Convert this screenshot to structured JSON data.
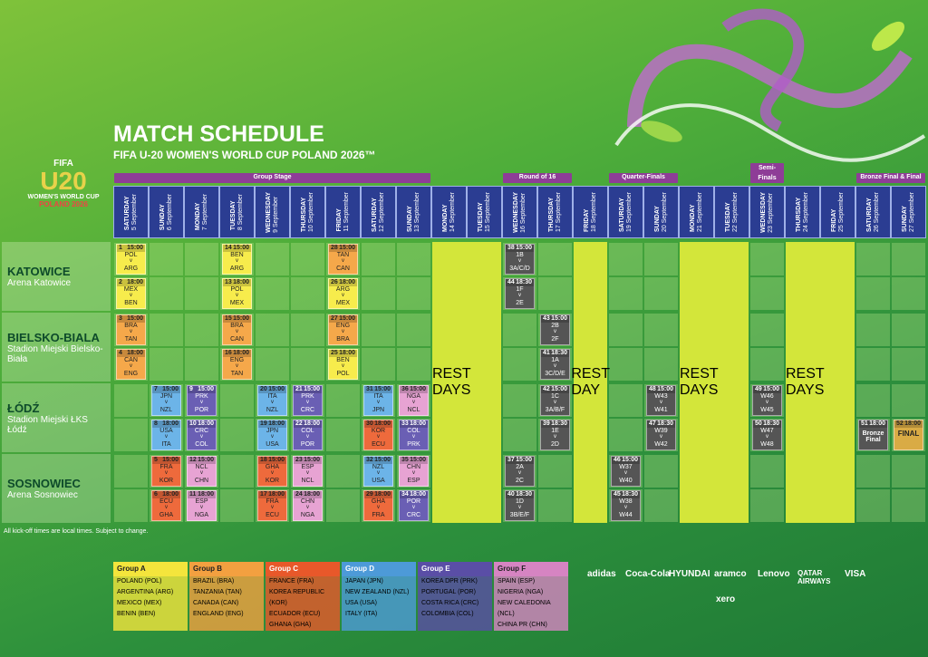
{
  "header": {
    "title": "MATCH SCHEDULE",
    "subtitle": "FIFA U-20 WOMEN'S WORLD CUP POLAND 2026™"
  },
  "logo": {
    "fifa": "FIFA",
    "u20": "U20",
    "line1": "WOMEN'S WORLD CUP",
    "line2": "POLAND 2026"
  },
  "stages": [
    "Group Stage",
    "Round of 16",
    "Quarter-Finals",
    "Semi-Finals",
    "Bronze Final & Final"
  ],
  "days": [
    {
      "weekday": "SATURDAY",
      "date": "5 September"
    },
    {
      "weekday": "SUNDAY",
      "date": "6 September"
    },
    {
      "weekday": "MONDAY",
      "date": "7 September"
    },
    {
      "weekday": "TUESDAY",
      "date": "8 September"
    },
    {
      "weekday": "WEDNESDAY",
      "date": "9 September"
    },
    {
      "weekday": "THURSDAY",
      "date": "10 September"
    },
    {
      "weekday": "FRIDAY",
      "date": "11 September"
    },
    {
      "weekday": "SATURDAY",
      "date": "12 September"
    },
    {
      "weekday": "SUNDAY",
      "date": "13 September"
    },
    {
      "weekday": "MONDAY",
      "date": "14 September"
    },
    {
      "weekday": "TUESDAY",
      "date": "15 September"
    },
    {
      "weekday": "WEDNESDAY",
      "date": "16 September"
    },
    {
      "weekday": "THURSDAY",
      "date": "17 September"
    },
    {
      "weekday": "FRIDAY",
      "date": "18 September"
    },
    {
      "weekday": "SATURDAY",
      "date": "19 September"
    },
    {
      "weekday": "SUNDAY",
      "date": "20 September"
    },
    {
      "weekday": "MONDAY",
      "date": "21 September"
    },
    {
      "weekday": "TUESDAY",
      "date": "22 September"
    },
    {
      "weekday": "WEDNESDAY",
      "date": "23 September"
    },
    {
      "weekday": "THURSDAY",
      "date": "24 September"
    },
    {
      "weekday": "FRIDAY",
      "date": "25 September"
    },
    {
      "weekday": "SATURDAY",
      "date": "26 September"
    },
    {
      "weekday": "SUNDAY",
      "date": "27 September"
    }
  ],
  "versus": "v",
  "venues": [
    {
      "city": "KATOWICE",
      "stadium": "Arena Katowice",
      "slots": [
        [
          {
            "number": "1",
            "time": "15:00",
            "teams": [
              "POL",
              "ARG"
            ],
            "color": "#f7ec4c"
          },
          {
            "number": "14",
            "time": "15:00",
            "teams": [
              "BEN",
              "ARG"
            ],
            "color": "#f7ec4c"
          },
          {
            "number": "28",
            "time": "15:00",
            "teams": [
              "TAN",
              "CAN"
            ],
            "color": "#f5a84a"
          },
          {
            "number": "38",
            "time": "15:00",
            "teams": [
              "1B",
              "3A/C/D"
            ],
            "color": "#555555"
          }
        ],
        [
          {
            "number": "2",
            "time": "18:00",
            "teams": [
              "MEX",
              "BEN"
            ],
            "color": "#f7ec4c"
          },
          {
            "number": "13",
            "time": "18:00",
            "teams": [
              "POL",
              "MEX"
            ],
            "color": "#f7ec4c"
          },
          {
            "number": "26",
            "time": "18:00",
            "teams": [
              "ARG",
              "MEX"
            ],
            "color": "#f7ec4c"
          },
          {
            "number": "44",
            "time": "18:30",
            "teams": [
              "1F",
              "2E"
            ],
            "color": "#555555"
          }
        ]
      ]
    },
    {
      "city": "BIELSKO-BIALA",
      "stadium": "Stadion Miejski Bielsko-Biała",
      "slots": [
        [
          {
            "number": "3",
            "time": "15:00",
            "teams": [
              "BRA",
              "TAN"
            ],
            "color": "#f5a84a"
          },
          {
            "number": "15",
            "time": "15:00",
            "teams": [
              "BRA",
              "CAN"
            ],
            "color": "#f5a84a"
          },
          {
            "number": "27",
            "time": "15:00",
            "teams": [
              "ENG",
              "BRA"
            ],
            "color": "#f5a84a"
          },
          {
            "number": "43",
            "time": "15:00",
            "teams": [
              "2B",
              "2F"
            ],
            "color": "#555555"
          }
        ],
        [
          {
            "number": "4",
            "time": "18:00",
            "teams": [
              "CAN",
              "ENG"
            ],
            "color": "#f5a84a"
          },
          {
            "number": "16",
            "time": "18:00",
            "teams": [
              "ENG",
              "TAN"
            ],
            "color": "#f5a84a"
          },
          {
            "number": "25",
            "time": "18:00",
            "teams": [
              "BEN",
              "POL"
            ],
            "color": "#f7ec4c"
          },
          {
            "number": "41",
            "time": "18:30",
            "teams": [
              "1A",
              "3C/D/E"
            ],
            "color": "#555555"
          }
        ]
      ]
    },
    {
      "city": "ŁÓDŹ",
      "stadium": "Stadion Miejski ŁKS Łódź",
      "slots": [
        [
          {
            "number": "7",
            "time": "15:00",
            "teams": [
              "JPN",
              "NZL"
            ],
            "color": "#6cb4e8"
          },
          {
            "number": "9",
            "time": "15:00",
            "teams": [
              "PRK",
              "POR"
            ],
            "color": "#6a5fb4"
          },
          {
            "number": "20",
            "time": "15:00",
            "teams": [
              "ITA",
              "NZL"
            ],
            "color": "#6cb4e8"
          },
          {
            "number": "21",
            "time": "15:00",
            "teams": [
              "PRK",
              "CRC"
            ],
            "color": "#6a5fb4"
          },
          {
            "number": "31",
            "time": "15:00",
            "teams": [
              "ITA",
              "JPN"
            ],
            "color": "#6cb4e8"
          },
          {
            "number": "36",
            "time": "15:00",
            "teams": [
              "NGA",
              "NCL"
            ],
            "color": "#e7a3d3"
          },
          {
            "number": "42",
            "time": "15:00",
            "teams": [
              "1C",
              "3A/B/F"
            ],
            "color": "#555555"
          },
          {
            "number": "48",
            "time": "15:00",
            "teams": [
              "W43",
              "W41"
            ],
            "color": "#555555"
          },
          {
            "number": "49",
            "time": "15:00",
            "teams": [
              "W46",
              "W45"
            ],
            "color": "#555555"
          }
        ],
        [
          {
            "number": "8",
            "time": "18:00",
            "teams": [
              "USA",
              "ITA"
            ],
            "color": "#6cb4e8"
          },
          {
            "number": "10",
            "time": "18:00",
            "teams": [
              "CRC",
              "COL"
            ],
            "color": "#6a5fb4"
          },
          {
            "number": "19",
            "time": "18:00",
            "teams": [
              "JPN",
              "USA"
            ],
            "color": "#6cb4e8"
          },
          {
            "number": "22",
            "time": "18:00",
            "teams": [
              "COL",
              "POR"
            ],
            "color": "#6a5fb4"
          },
          {
            "number": "30",
            "time": "18:00",
            "teams": [
              "KOR",
              "ECU"
            ],
            "color": "#ee6a3c"
          },
          {
            "number": "33",
            "time": "18:00",
            "teams": [
              "COL",
              "PRK"
            ],
            "color": "#6a5fb4"
          },
          {
            "number": "39",
            "time": "18:30",
            "teams": [
              "1E",
              "2D"
            ],
            "color": "#555555"
          },
          {
            "number": "47",
            "time": "18:30",
            "teams": [
              "W39",
              "W42"
            ],
            "color": "#555555"
          },
          {
            "number": "50",
            "time": "18:30",
            "teams": [
              "W47",
              "W48"
            ],
            "color": "#555555"
          },
          {
            "number": "51",
            "time": "18:00",
            "label": "Bronze Final",
            "color": "#555555"
          },
          {
            "number": "52",
            "time": "18:00",
            "label": "FINAL",
            "color": "#d9ab45"
          }
        ]
      ]
    },
    {
      "city": "SOSNOWIEC",
      "stadium": "Arena Sosnowiec",
      "slots": [
        [
          {
            "number": "5",
            "time": "15:00",
            "teams": [
              "FRA",
              "KOR"
            ],
            "color": "#ee6a3c"
          },
          {
            "number": "12",
            "time": "15:00",
            "teams": [
              "NCL",
              "CHN"
            ],
            "color": "#e7a3d3"
          },
          {
            "number": "18",
            "time": "15:00",
            "teams": [
              "GHA",
              "KOR"
            ],
            "color": "#ee6a3c"
          },
          {
            "number": "23",
            "time": "15:00",
            "teams": [
              "ESP",
              "NCL"
            ],
            "color": "#e7a3d3"
          },
          {
            "number": "32",
            "time": "15:00",
            "teams": [
              "NZL",
              "USA"
            ],
            "color": "#6cb4e8"
          },
          {
            "number": "35",
            "time": "15:00",
            "teams": [
              "CHN",
              "ESP"
            ],
            "color": "#e7a3d3"
          },
          {
            "number": "37",
            "time": "15:00",
            "teams": [
              "2A",
              "2C"
            ],
            "color": "#555555"
          },
          {
            "number": "46",
            "time": "15:00",
            "teams": [
              "W37",
              "W40"
            ],
            "color": "#555555"
          }
        ],
        [
          {
            "number": "6",
            "time": "18:00",
            "teams": [
              "ECU",
              "GHA"
            ],
            "color": "#ee6a3c"
          },
          {
            "number": "11",
            "time": "18:00",
            "teams": [
              "ESP",
              "NGA"
            ],
            "color": "#e7a3d3"
          },
          {
            "number": "17",
            "time": "18:00",
            "teams": [
              "FRA",
              "ECU"
            ],
            "color": "#ee6a3c"
          },
          {
            "number": "24",
            "time": "18:00",
            "teams": [
              "CHN",
              "NGA"
            ],
            "color": "#e7a3d3"
          },
          {
            "number": "29",
            "time": "18:00",
            "teams": [
              "GHA",
              "FRA"
            ],
            "color": "#ee6a3c"
          },
          {
            "number": "34",
            "time": "18:00",
            "teams": [
              "POR",
              "CRC"
            ],
            "color": "#6a5fb4"
          },
          {
            "number": "40",
            "time": "18:30",
            "teams": [
              "1D",
              "3B/E/F"
            ],
            "color": "#555555"
          },
          {
            "number": "45",
            "time": "18:30",
            "teams": [
              "W38",
              "W44"
            ],
            "color": "#555555"
          }
        ]
      ]
    }
  ],
  "rest_days": [
    "REST DAYS",
    "REST DAY",
    "REST DAYS",
    "REST DAYS"
  ],
  "note": "All kick-off times are local times. Subject to change.",
  "groups": [
    {
      "name": "Group A",
      "color": "#f4e53c",
      "teams": [
        "POLAND (POL)",
        "ARGENTINA (ARG)",
        "MEXICO (MEX)",
        "BENIN (BEN)"
      ]
    },
    {
      "name": "Group B",
      "color": "#f3a040",
      "teams": [
        "BRAZIL (BRA)",
        "TANZANIA (TAN)",
        "CANADA (CAN)",
        "ENGLAND (ENG)"
      ]
    },
    {
      "name": "Group C",
      "color": "#e8582a",
      "teams": [
        "FRANCE (FRA)",
        "KOREA REPUBLIC (KOR)",
        "ECUADOR (ECU)",
        "GHANA (GHA)"
      ]
    },
    {
      "name": "Group D",
      "color": "#4d9ad8",
      "teams": [
        "JAPAN (JPN)",
        "NEW ZEALAND (NZL)",
        "USA (USA)",
        "ITALY (ITA)"
      ]
    },
    {
      "name": "Group E",
      "color": "#5a4ea6",
      "teams": [
        "KOREA DPR (PRK)",
        "PORTUGAL (POR)",
        "COSTA RICA (CRC)",
        "COLOMBIA (COL)"
      ]
    },
    {
      "name": "Group F",
      "color": "#d684c2",
      "teams": [
        "SPAIN (ESP)",
        "NIGERIA (NGA)",
        "NEW CALEDONIA (NCL)",
        "CHINA PR (CHN)"
      ]
    }
  ],
  "sponsors": [
    "adidas",
    "Coca-Cola",
    "HYUNDAI",
    "aramco",
    "Lenovo",
    "QATAR AIRWAYS",
    "VISA",
    "xero"
  ]
}
